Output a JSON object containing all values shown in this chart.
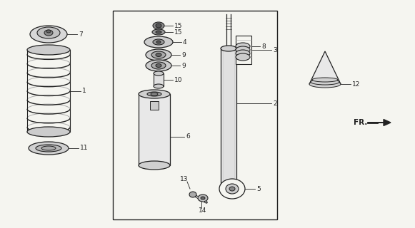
{
  "bg_color": "#f5f5f0",
  "line_color": "#222222",
  "parts": {
    "part7_label": "7",
    "part1_label": "1",
    "part11_label": "11",
    "part15a_label": "15",
    "part15b_label": "15",
    "part4_label": "4",
    "part9a_label": "9",
    "part9b_label": "9",
    "part10_label": "10",
    "part6_label": "6",
    "part13_label": "13",
    "part14_label": "14",
    "part5_label": "5",
    "part2_label": "2",
    "part3_label": "3",
    "part8_label": "8",
    "part12_label": "12",
    "fr_label": "FR."
  }
}
